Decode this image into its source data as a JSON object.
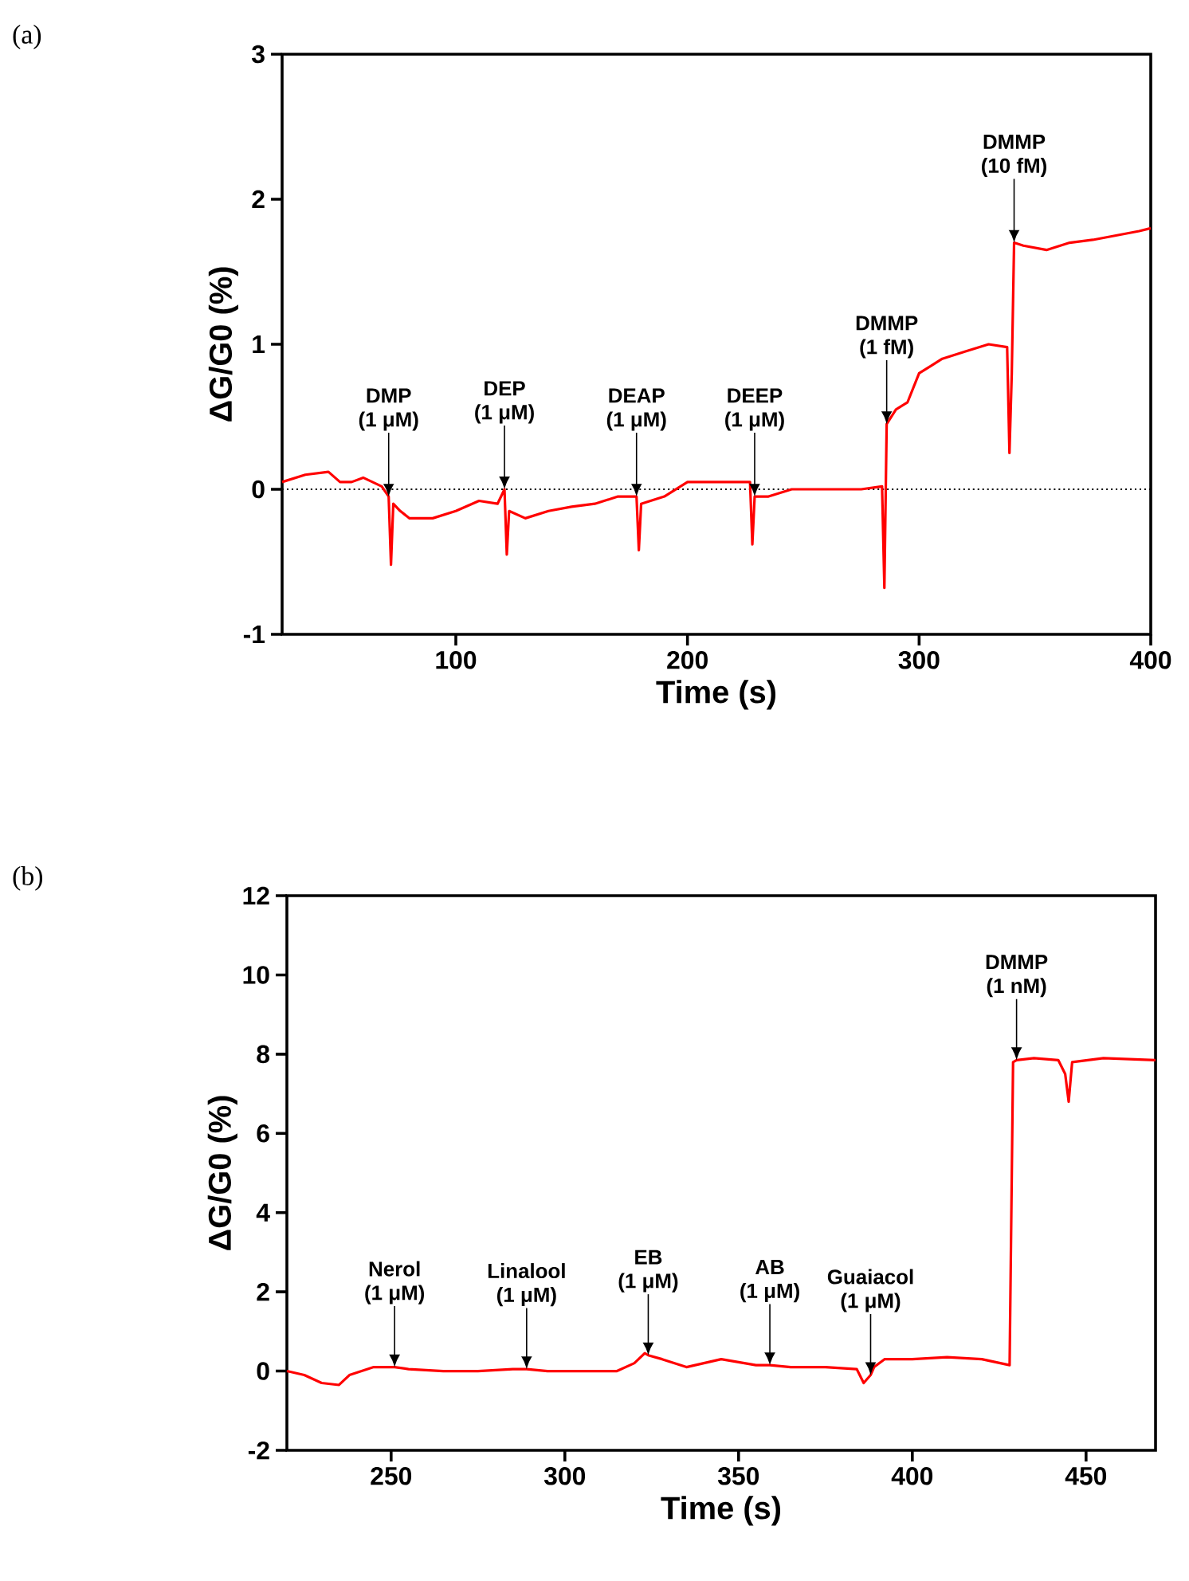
{
  "chart_data": [
    {
      "type": "line",
      "xlabel": "Time (s)",
      "ylabel": "ΔG/G0 (%)",
      "color": "#ff0000",
      "xlim": [
        25,
        400
      ],
      "xticks": [
        100,
        200,
        300,
        400
      ],
      "ylim": [
        -1,
        3
      ],
      "yticks": [
        -1,
        0,
        1,
        2,
        3
      ],
      "x": [
        25,
        35,
        45,
        50,
        55,
        60,
        68,
        71,
        72,
        73,
        76,
        80,
        90,
        100,
        110,
        118,
        121,
        122,
        123,
        130,
        140,
        150,
        160,
        170,
        178,
        179,
        180,
        190,
        200,
        210,
        220,
        227,
        228,
        229,
        235,
        245,
        255,
        265,
        275,
        284,
        285,
        286,
        290,
        295,
        300,
        305,
        310,
        320,
        330,
        338,
        339,
        340,
        341,
        345,
        355,
        365,
        375,
        385,
        395,
        400
      ],
      "values": [
        0.05,
        0.1,
        0.12,
        0.05,
        0.05,
        0.08,
        0.02,
        -0.05,
        -0.52,
        -0.1,
        -0.15,
        -0.2,
        -0.2,
        -0.15,
        -0.08,
        -0.1,
        0.0,
        -0.45,
        -0.15,
        -0.2,
        -0.15,
        -0.12,
        -0.1,
        -0.05,
        -0.05,
        -0.42,
        -0.1,
        -0.05,
        0.05,
        0.05,
        0.05,
        0.05,
        -0.38,
        -0.05,
        -0.05,
        0.0,
        0.0,
        0.0,
        0.0,
        0.02,
        -0.68,
        0.45,
        0.55,
        0.6,
        0.8,
        0.85,
        0.9,
        0.95,
        1.0,
        0.98,
        0.25,
        0.8,
        1.7,
        1.68,
        1.65,
        1.7,
        1.72,
        1.75,
        1.78,
        1.8
      ],
      "ref_lines": [
        {
          "axis": "y",
          "value": 0,
          "line_style": "dotted",
          "color": "#000000"
        }
      ],
      "annotations": [
        "(a)",
        {
          "text": "DMP (1 μM)",
          "x": 71,
          "y": -0.05
        },
        {
          "text": "DEP (1 μM)",
          "x": 121,
          "y": 0.0
        },
        {
          "text": "DEAP (1 μM)",
          "x": 178,
          "y": -0.05
        },
        {
          "text": "DEEP (1 μM)",
          "x": 229,
          "y": -0.05
        },
        {
          "text": "DMMP (1 fM)",
          "x": 286,
          "y": 0.45
        },
        {
          "text": "DMMP (10 fM)",
          "x": 341,
          "y": 1.7
        }
      ]
    },
    {
      "type": "line",
      "xlabel": "Time (s)",
      "ylabel": "ΔG/G0 (%)",
      "color": "#ff0000",
      "xlim": [
        220,
        470
      ],
      "xticks": [
        250,
        300,
        350,
        400,
        450
      ],
      "ylim": [
        -2,
        12
      ],
      "yticks": [
        -2,
        0,
        2,
        4,
        6,
        8,
        10,
        12
      ],
      "x": [
        220,
        225,
        230,
        235,
        238,
        245,
        251,
        255,
        265,
        275,
        285,
        289,
        295,
        305,
        315,
        320,
        323,
        324,
        328,
        335,
        345,
        355,
        359,
        365,
        375,
        384,
        386,
        388,
        389,
        392,
        400,
        410,
        420,
        428,
        429,
        430,
        435,
        442,
        444,
        445,
        446,
        455,
        470
      ],
      "values": [
        0.0,
        -0.1,
        -0.3,
        -0.35,
        -0.1,
        0.1,
        0.1,
        0.05,
        0.0,
        0.0,
        0.05,
        0.05,
        0.0,
        0.0,
        0.0,
        0.2,
        0.45,
        0.4,
        0.3,
        0.1,
        0.3,
        0.15,
        0.15,
        0.1,
        0.1,
        0.05,
        -0.3,
        -0.1,
        0.1,
        0.3,
        0.3,
        0.35,
        0.3,
        0.15,
        7.8,
        7.85,
        7.9,
        7.85,
        7.5,
        6.8,
        7.8,
        7.9,
        7.85
      ],
      "annotations": [
        "(b)",
        {
          "text": "Nerol (1 μM)",
          "x": 251,
          "y": 0.1
        },
        {
          "text": "Linalool (1 μM)",
          "x": 289,
          "y": 0.05
        },
        {
          "text": "EB (1 μM)",
          "x": 324,
          "y": 0.4
        },
        {
          "text": "AB (1 μM)",
          "x": 359,
          "y": 0.15
        },
        {
          "text": "Guaiacol (1 μM)",
          "x": 388,
          "y": -0.1
        },
        {
          "text": "DMMP (1 nM)",
          "x": 430,
          "y": 7.85
        }
      ]
    }
  ]
}
